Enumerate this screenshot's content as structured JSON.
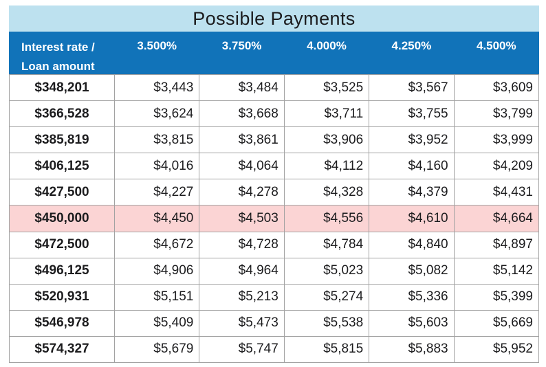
{
  "title": "Possible Payments",
  "corner_header": {
    "line1": "Interest rate /",
    "line2": "Loan amount"
  },
  "chart_data": {
    "type": "table",
    "title": "Possible Payments",
    "corner_label": "Interest rate / Loan amount",
    "columns": [
      "3.500%",
      "3.750%",
      "4.000%",
      "4.250%",
      "4.500%"
    ],
    "rows": [
      {
        "loan_amount": "$348,201",
        "payments": [
          "$3,443",
          "$3,484",
          "$3,525",
          "$3,567",
          "$3,609"
        ],
        "highlighted": false
      },
      {
        "loan_amount": "$366,528",
        "payments": [
          "$3,624",
          "$3,668",
          "$3,711",
          "$3,755",
          "$3,799"
        ],
        "highlighted": false
      },
      {
        "loan_amount": "$385,819",
        "payments": [
          "$3,815",
          "$3,861",
          "$3,906",
          "$3,952",
          "$3,999"
        ],
        "highlighted": false
      },
      {
        "loan_amount": "$406,125",
        "payments": [
          "$4,016",
          "$4,064",
          "$4,112",
          "$4,160",
          "$4,209"
        ],
        "highlighted": false
      },
      {
        "loan_amount": "$427,500",
        "payments": [
          "$4,227",
          "$4,278",
          "$4,328",
          "$4,379",
          "$4,431"
        ],
        "highlighted": false
      },
      {
        "loan_amount": "$450,000",
        "payments": [
          "$4,450",
          "$4,503",
          "$4,556",
          "$4,610",
          "$4,664"
        ],
        "highlighted": true
      },
      {
        "loan_amount": "$472,500",
        "payments": [
          "$4,672",
          "$4,728",
          "$4,784",
          "$4,840",
          "$4,897"
        ],
        "highlighted": false
      },
      {
        "loan_amount": "$496,125",
        "payments": [
          "$4,906",
          "$4,964",
          "$5,023",
          "$5,082",
          "$5,142"
        ],
        "highlighted": false
      },
      {
        "loan_amount": "$520,931",
        "payments": [
          "$5,151",
          "$5,213",
          "$5,274",
          "$5,336",
          "$5,399"
        ],
        "highlighted": false
      },
      {
        "loan_amount": "$546,978",
        "payments": [
          "$5,409",
          "$5,473",
          "$5,538",
          "$5,603",
          "$5,669"
        ],
        "highlighted": false
      },
      {
        "loan_amount": "$574,327",
        "payments": [
          "$5,679",
          "$5,747",
          "$5,815",
          "$5,883",
          "$5,952"
        ],
        "highlighted": false
      }
    ],
    "highlighted_row": "$450,000",
    "layout": {
      "legend": "none",
      "grid": "on"
    }
  },
  "colors": {
    "title_bar_bg": "#bde1ef",
    "header_bg": "#1173b9",
    "header_text": "#ffffff",
    "highlight_row_bg": "#fbd4d4",
    "grid_line": "#a2a2a2",
    "text": "#1c1c1e"
  }
}
